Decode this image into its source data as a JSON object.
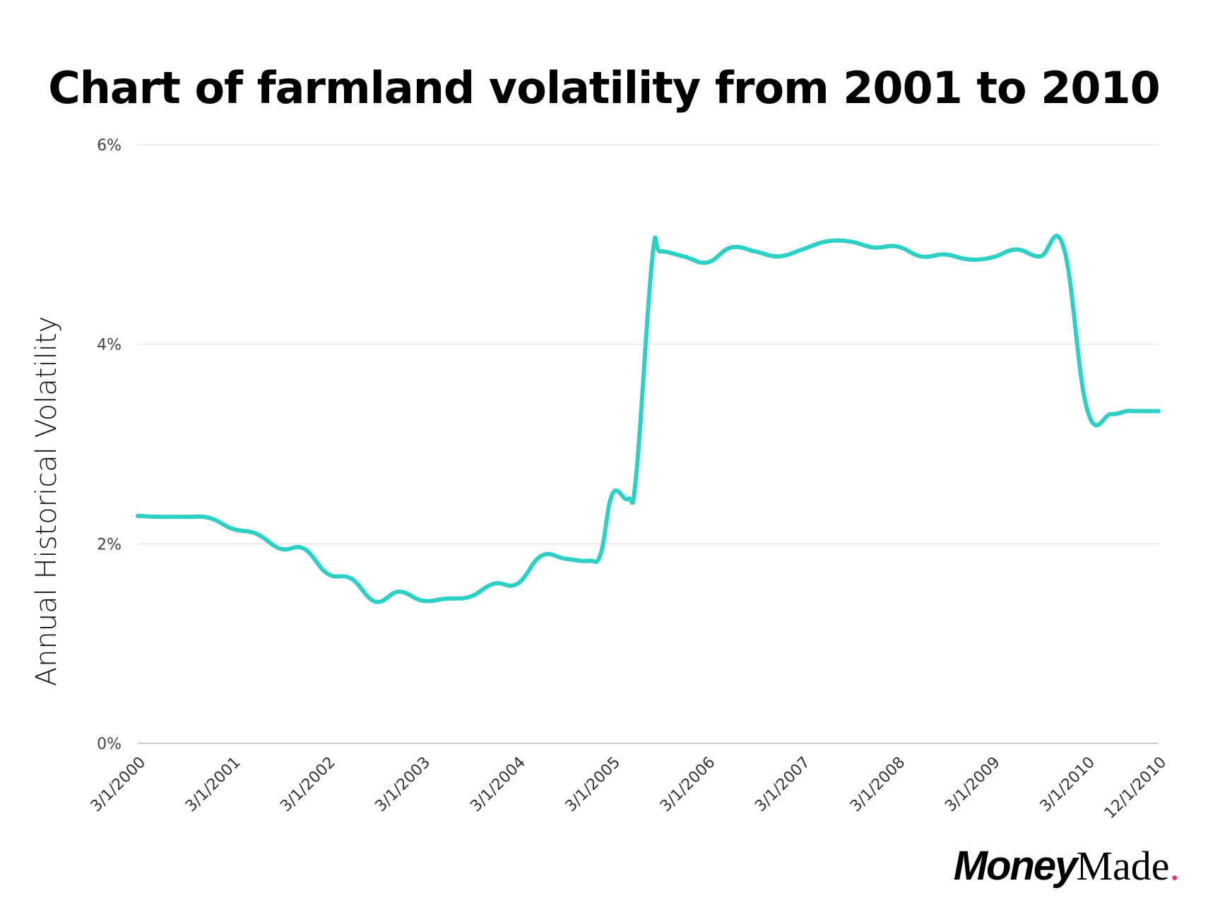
{
  "chart_data": {
    "type": "line",
    "title": "Chart of farmland volatility from 2001 to 2010",
    "ylabel": "Annual Historical Volatility",
    "ylim": [
      0,
      6
    ],
    "y_ticks": [
      "6%",
      "4%",
      "2%",
      "0%"
    ],
    "grid": true,
    "x_tick_labels": [
      "3/1/2000",
      "3/1/2001",
      "3/1/2002",
      "3/1/2003",
      "3/1/2004",
      "3/1/2005",
      "3/1/2006",
      "3/1/2007",
      "3/1/2008",
      "3/1/2009",
      "3/1/2010",
      "12/1/2010"
    ],
    "line_color": "#2ecfc4",
    "series": [
      {
        "x": [
          "2000-03-01",
          "2000-06-01",
          "2000-09-01",
          "2000-12-01",
          "2001-03-01",
          "2001-06-01",
          "2001-09-01",
          "2001-12-01",
          "2002-03-01",
          "2002-06-01",
          "2002-09-01",
          "2002-12-01",
          "2003-03-01",
          "2003-06-01",
          "2003-09-01",
          "2003-12-01",
          "2004-03-01",
          "2004-06-01",
          "2004-09-01",
          "2004-12-01",
          "2005-01-15",
          "2005-03-01",
          "2005-05-01",
          "2005-06-01",
          "2005-08-01",
          "2005-09-01",
          "2005-12-01",
          "2006-03-01",
          "2006-06-01",
          "2006-09-01",
          "2006-12-01",
          "2007-03-01",
          "2007-06-01",
          "2007-09-01",
          "2007-12-01",
          "2008-03-01",
          "2008-06-01",
          "2008-09-01",
          "2008-12-01",
          "2009-03-01",
          "2009-06-01",
          "2009-09-01",
          "2009-12-01",
          "2010-03-01",
          "2010-06-01",
          "2010-08-01",
          "2010-09-01",
          "2010-12-01"
        ],
        "values": [
          2.28,
          2.27,
          2.27,
          2.26,
          2.15,
          2.1,
          1.95,
          1.95,
          1.7,
          1.65,
          1.42,
          1.52,
          1.43,
          1.45,
          1.47,
          1.6,
          1.6,
          1.88,
          1.85,
          1.83,
          1.9,
          2.5,
          2.45,
          2.7,
          4.85,
          4.93,
          4.88,
          4.82,
          4.97,
          4.93,
          4.88,
          4.95,
          5.03,
          5.03,
          4.97,
          4.98,
          4.88,
          4.9,
          4.85,
          4.87,
          4.95,
          4.88,
          4.97,
          3.35,
          3.3,
          3.33,
          3.33,
          3.33
        ]
      }
    ]
  },
  "brand": {
    "part1": "Money",
    "part2": "Made",
    "dot": "."
  }
}
